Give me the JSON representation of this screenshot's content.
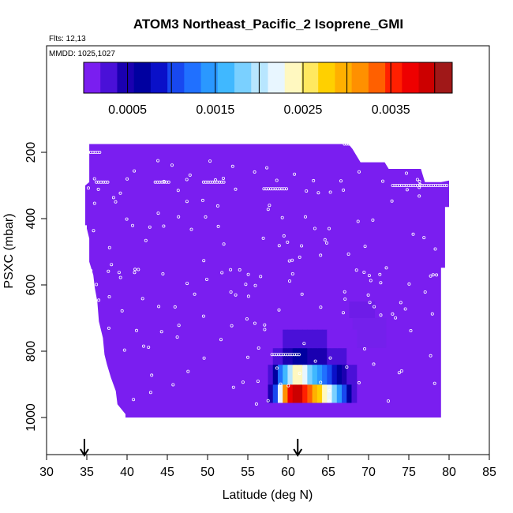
{
  "chart_data": {
    "type": "heatmap",
    "title": "ATOM3 Northeast_Pacific_2 Isoprene_GMI",
    "flights_label": "Flts: 12,13",
    "dates_label": "MMDD: 1025,1027",
    "xlabel": "Latitude (deg N)",
    "ylabel": "PSXC (mbar)",
    "xlim": [
      30,
      85
    ],
    "ylim": [
      1000,
      100
    ],
    "x_ticks": [
      30,
      35,
      40,
      45,
      50,
      55,
      60,
      65,
      70,
      75,
      80,
      85
    ],
    "y_ticks": [
      200,
      400,
      600,
      800,
      1000
    ],
    "colorbar": {
      "range": [
        0,
        0.0042
      ],
      "tick_values": [
        0.0005,
        0.0015,
        0.0025,
        0.0035
      ],
      "tick_labels": [
        "0.0005",
        "0.0015",
        "0.0025",
        "0.0035"
      ],
      "colors": [
        "#7a1ef0",
        "#4a10d8",
        "#1a00b0",
        "#0000a0",
        "#0a10c8",
        "#1848f0",
        "#2070ff",
        "#2a98ff",
        "#40b8ff",
        "#7ad0ff",
        "#b8e6ff",
        "#e8f6ff",
        "#fff8c0",
        "#ffe860",
        "#ffd000",
        "#ffb000",
        "#ff9000",
        "#ff6000",
        "#ff2000",
        "#ee0000",
        "#cc0000",
        "#a01818"
      ]
    },
    "background_value": 1e-05,
    "enhanced_region": {
      "lat_range": [
        57.5,
        68.5
      ],
      "rows": [
        {
          "p_top": 900,
          "p_bottom": 955,
          "values": [
            0.0004,
            0.0011,
            0.0022,
            0.0032,
            0.0038,
            0.004,
            0.0039,
            0.0036,
            0.0033,
            0.003,
            0.0027,
            0.0024,
            0.0021,
            0.0018,
            0.0014,
            0.001,
            0.0006,
            0.0003
          ]
        },
        {
          "p_top": 840,
          "p_bottom": 900,
          "values": [
            0.0003,
            0.0007,
            0.0012,
            0.0017,
            0.002,
            0.0024,
            0.0023,
            0.0021,
            0.0019,
            0.0017,
            0.0015,
            0.0013,
            0.0011,
            0.0009,
            0.0007,
            0.0005,
            0.0003,
            0.0002
          ]
        },
        {
          "p_top": 790,
          "p_bottom": 840,
          "values": [
            0.0001,
            0.0002,
            0.0003,
            0.0004,
            0.0005,
            0.0006,
            0.0006,
            0.0006,
            0.0005,
            0.0005,
            0.0004,
            0.0004,
            0.0003,
            0.0003,
            0.0002,
            0.0002,
            0.0001,
            0.0001
          ]
        },
        {
          "p_top": 735,
          "p_bottom": 790,
          "values": [
            8e-05,
            0.00012,
            0.00018,
            0.00022,
            0.00025,
            0.00028,
            0.0003,
            0.0003,
            0.00028,
            0.00026,
            0.00024,
            0.0002,
            0.00018,
            0.00015,
            0.00012,
            0.0001,
            8e-05,
            6e-05
          ]
        }
      ]
    },
    "flight_arrows_lat": [
      34.7,
      61.2
    ]
  }
}
